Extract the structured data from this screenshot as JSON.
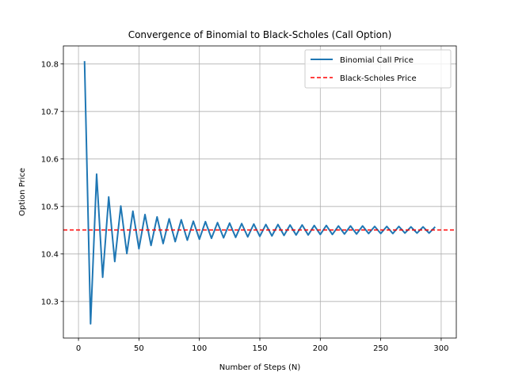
{
  "chart_data": {
    "type": "line",
    "title": "Convergence of Binomial to Black-Scholes (Call Option)",
    "xlabel": "Number of Steps (N)",
    "ylabel": "Option Price",
    "xlim": [
      -12.5,
      312.5
    ],
    "ylim": [
      10.223,
      10.838
    ],
    "x_ticks": [
      0,
      50,
      100,
      150,
      200,
      250,
      300
    ],
    "y_ticks": [
      10.3,
      10.4,
      10.5,
      10.6,
      10.7,
      10.8
    ],
    "grid": true,
    "legend_position": "top-right",
    "series": [
      {
        "name": "Binomial Call Price",
        "color": "#1f77b4",
        "style": "solid",
        "x": [
          5,
          10,
          15,
          20,
          25,
          30,
          35,
          40,
          45,
          50,
          55,
          60,
          65,
          70,
          75,
          80,
          85,
          90,
          95,
          100,
          105,
          110,
          115,
          120,
          125,
          130,
          135,
          140,
          145,
          150,
          155,
          160,
          165,
          170,
          175,
          180,
          185,
          190,
          195,
          200,
          205,
          210,
          215,
          220,
          225,
          230,
          235,
          240,
          245,
          250,
          255,
          260,
          265,
          270,
          275,
          280,
          285,
          290,
          295
        ],
        "values": [
          10.806,
          10.253,
          10.568,
          10.351,
          10.52,
          10.384,
          10.501,
          10.401,
          10.49,
          10.411,
          10.483,
          10.418,
          10.478,
          10.422,
          10.474,
          10.426,
          10.472,
          10.429,
          10.469,
          10.431,
          10.468,
          10.433,
          10.466,
          10.434,
          10.465,
          10.435,
          10.464,
          10.436,
          10.463,
          10.437,
          10.462,
          10.438,
          10.462,
          10.439,
          10.461,
          10.44,
          10.461,
          10.44,
          10.46,
          10.441,
          10.46,
          10.441,
          10.459,
          10.442,
          10.459,
          10.442,
          10.459,
          10.443,
          10.458,
          10.443,
          10.458,
          10.443,
          10.458,
          10.444,
          10.457,
          10.444,
          10.457,
          10.444,
          10.457
        ]
      },
      {
        "name": "Black-Scholes Price",
        "color": "#ff0000",
        "style": "dashed",
        "value": 10.4506
      }
    ]
  }
}
